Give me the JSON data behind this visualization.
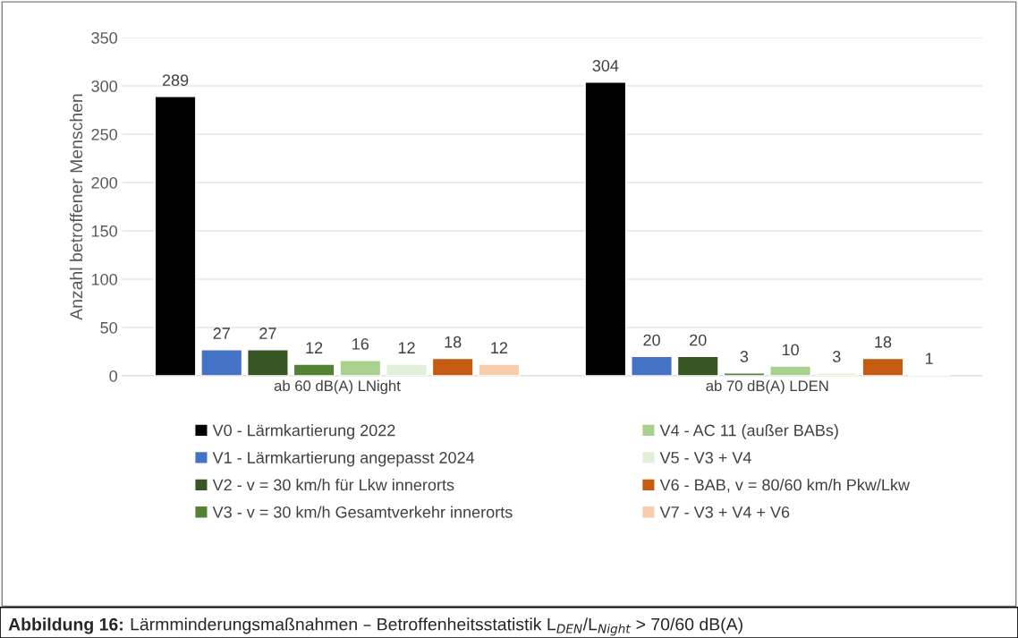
{
  "chart_data": {
    "type": "bar",
    "ylabel": "Anzahl betroffener Menschen",
    "categories": [
      "ab 60 dB(A) LNight",
      "ab 70 dB(A) LDEN"
    ],
    "series": [
      {
        "name": "V0 - Lärmkartierung 2022",
        "color": "#000000",
        "values": [
          289,
          304
        ]
      },
      {
        "name": "V1 - Lärmkartierung angepasst 2024",
        "color": "#4472c4",
        "values": [
          27,
          20
        ]
      },
      {
        "name": "V2 - v = 30 km/h für Lkw innerorts",
        "color": "#375623",
        "values": [
          27,
          20
        ]
      },
      {
        "name": "V3 - v = 30 km/h Gesamtverkehr innerorts",
        "color": "#548235",
        "values": [
          12,
          3
        ]
      },
      {
        "name": "V4 - AC 11 (außer BABs)",
        "color": "#a9d18e",
        "values": [
          16,
          10
        ]
      },
      {
        "name": "V5 - V3 + V4",
        "color": "#e2f0d9",
        "values": [
          12,
          3
        ]
      },
      {
        "name": "V6 - BAB, v = 80/60 km/h Pkw/Lkw",
        "color": "#c55a11",
        "values": [
          18,
          18
        ]
      },
      {
        "name": "V7 - V3 + V4 + V6",
        "color": "#f8cbad",
        "values": [
          12,
          1
        ]
      }
    ],
    "ylim": [
      0,
      350
    ],
    "yticks": [
      0,
      50,
      100,
      150,
      200,
      250,
      300,
      350
    ],
    "grid": "y",
    "legend": "bottom",
    "data_labels": true,
    "annotations": [
      "Abbildung 16:",
      "Lärmminderungsmaßnahmen – Betroffenheitsstatistik L$_{DEN}$/L$_{Night}$ > 70/60 dB(A)"
    ]
  }
}
